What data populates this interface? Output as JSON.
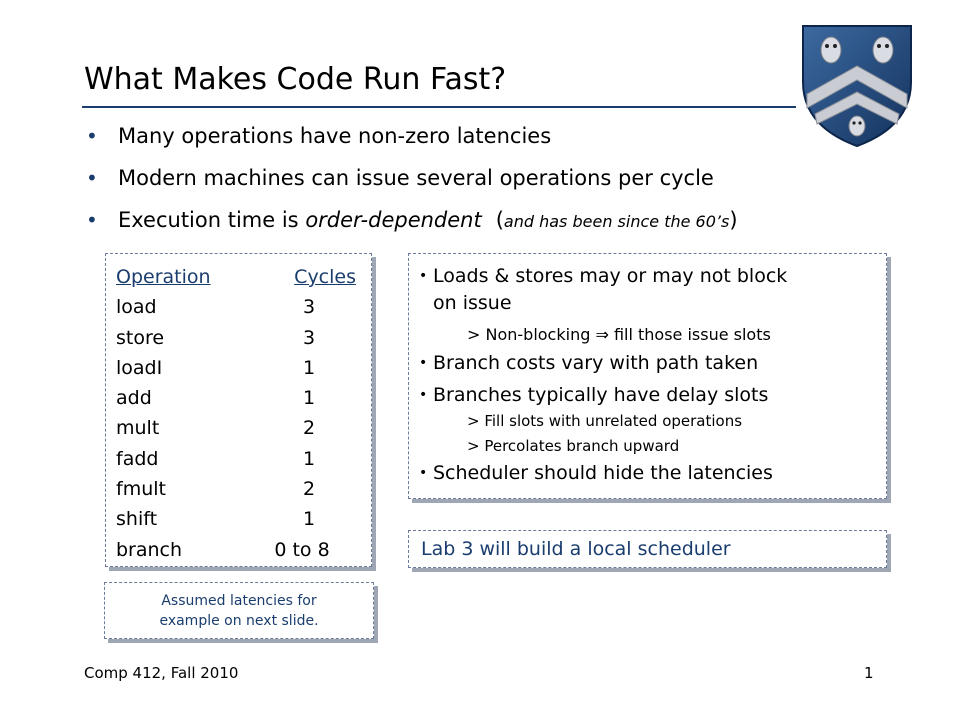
{
  "slide": {
    "title": "What Makes Code Run Fast?",
    "bullets": [
      {
        "dot": "•",
        "text": "Many operations have non-zero latencies"
      },
      {
        "dot": "•",
        "text": "Modern machines can issue several operations per cycle"
      },
      {
        "dot": "•",
        "text_prefix": "Execution time is ",
        "text_emph": "order-dependent",
        "aside_open": "(",
        "aside_text": "and has been since the 60’s",
        "aside_close": ")"
      }
    ]
  },
  "latency_table": {
    "headers": {
      "operation": "Operation",
      "cycles": "Cycles"
    },
    "rows": [
      {
        "op": "load",
        "cycles": "3"
      },
      {
        "op": "store",
        "cycles": "3"
      },
      {
        "op": "loadI",
        "cycles": "1"
      },
      {
        "op": "add",
        "cycles": "1"
      },
      {
        "op": "mult",
        "cycles": "2"
      },
      {
        "op": "fadd",
        "cycles": "1"
      },
      {
        "op": "fmult",
        "cycles": "2"
      },
      {
        "op": "shift",
        "cycles": "1"
      },
      {
        "op": "branch",
        "cycles": "0 to 8"
      }
    ]
  },
  "note": {
    "line1": "Assumed latencies for",
    "line2": "example on next slide."
  },
  "scheduling": {
    "b1_line1": "Loads & stores may or may not block",
    "b1_line2": "on issue",
    "b1_sub": "> Non-blocking ⇒ fill those issue slots",
    "b2": "Branch costs vary with path taken",
    "b3": "Branches typically have delay slots",
    "b3_sub1": "> Fill slots with unrelated operations",
    "b3_sub2": "> Percolates branch upward",
    "b4": "Scheduler should hide the latencies",
    "dot": "•"
  },
  "lab": {
    "text": "Lab 3 will build a local scheduler"
  },
  "footer": {
    "course": "Comp 412, Fall 2010",
    "page": "1"
  },
  "colors": {
    "accent": "#1a3d6e",
    "shadow": "#9fa7b4"
  },
  "logo": {
    "icon": "rice-university-crest-icon"
  }
}
